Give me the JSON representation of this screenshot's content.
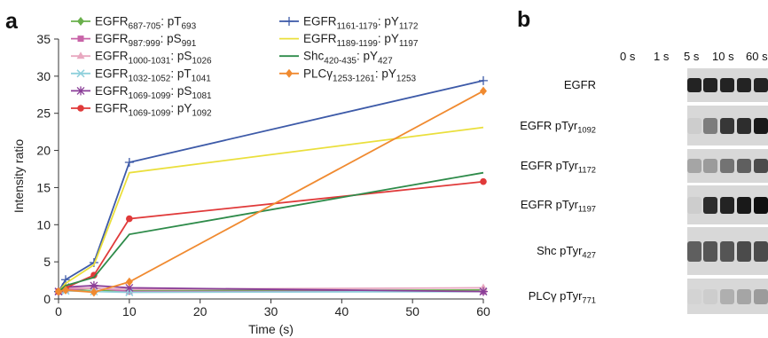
{
  "panel_a_label": "a",
  "panel_b_label": "b",
  "chart_data": {
    "type": "line",
    "xlabel": "Time (s)",
    "ylabel": "Intensity ratio",
    "xlim": [
      0,
      60
    ],
    "ylim": [
      0,
      35
    ],
    "xticks": [
      0,
      10,
      20,
      30,
      40,
      50,
      60
    ],
    "yticks": [
      0,
      5,
      10,
      15,
      20,
      25,
      30,
      35
    ],
    "grid": false,
    "legend_position": "top-left",
    "x": [
      0,
      1,
      5,
      10,
      60
    ],
    "series": [
      {
        "name": "EGFR687-705: pT693",
        "base": "EGFR",
        "sub1": "687-705",
        "mid": ": pT",
        "sub2": "693",
        "color": "#6ab04c",
        "marker": "diamond",
        "values": [
          1.0,
          1.3,
          1.1,
          1.1,
          1.2
        ]
      },
      {
        "name": "EGFR987:999: pS991",
        "base": "EGFR",
        "sub1": "987:999",
        "mid": ": pS",
        "sub2": "991",
        "color": "#c864a8",
        "marker": "square",
        "values": [
          1.0,
          1.2,
          1.5,
          1.0,
          1.0
        ]
      },
      {
        "name": "EGFR1000-1031: pS1026",
        "base": "EGFR",
        "sub1": "1000-1031",
        "mid": ": pS",
        "sub2": "1026",
        "color": "#e8a8c0",
        "marker": "triangle",
        "values": [
          1.0,
          1.5,
          1.4,
          1.3,
          1.5
        ]
      },
      {
        "name": "EGFR1032-1052: pT1041",
        "base": "EGFR",
        "sub1": "1032-1052",
        "mid": ": pT",
        "sub2": "1041",
        "color": "#8fd0dc",
        "marker": "x",
        "values": [
          1.0,
          1.1,
          1.0,
          0.9,
          1.0
        ]
      },
      {
        "name": "EGFR1069-1099: pS1081",
        "base": "EGFR",
        "sub1": "1069-1099",
        "mid": ": pS",
        "sub2": "1081",
        "color": "#8a3e98",
        "marker": "star",
        "values": [
          1.0,
          1.6,
          1.8,
          1.5,
          1.0
        ]
      },
      {
        "name": "EGFR1069-1099: pY1092",
        "base": "EGFR",
        "sub1": "1069-1099",
        "mid": ": pY",
        "sub2": "1092",
        "color": "#e03a3a",
        "marker": "circle",
        "values": [
          1.0,
          1.5,
          3.2,
          10.8,
          15.8
        ]
      },
      {
        "name": "EGFR1161-1179: pY1172",
        "base": "EGFR",
        "sub1": "1161-1179",
        "mid": ": pY",
        "sub2": "1172",
        "color": "#3d5aa8",
        "marker": "plus",
        "values": [
          1.0,
          2.6,
          4.9,
          18.4,
          29.4
        ]
      },
      {
        "name": "EGFR1189-1199: pY1197",
        "base": "EGFR",
        "sub1": "1189-1199",
        "mid": ": pY",
        "sub2": "1197",
        "color": "#eadf3c",
        "marker": "none",
        "values": [
          1.0,
          2.1,
          4.6,
          17.0,
          23.1
        ]
      },
      {
        "name": "Shc420-435: pY427",
        "base": "Shc",
        "sub1": "420-435",
        "mid": ": pY",
        "sub2": "427",
        "color": "#2e8b4a",
        "marker": "none",
        "values": [
          1.0,
          1.8,
          2.9,
          8.7,
          17.0
        ]
      },
      {
        "name": "PLCγ1253-1261: pY1253",
        "base": "PLCγ",
        "sub1": "1253-1261",
        "mid": ": pY",
        "sub2": "1253",
        "color": "#f08a30",
        "marker": "diamond",
        "values": [
          1.0,
          1.2,
          0.9,
          2.3,
          28.0
        ]
      }
    ]
  },
  "blot": {
    "time_points": [
      "0 s",
      "1 s",
      "5 s",
      "10 s",
      "60 s"
    ],
    "rows": [
      {
        "label": "EGFR",
        "sub": "",
        "intensity": [
          0.9,
          0.9,
          0.9,
          0.9,
          0.9
        ]
      },
      {
        "label": "EGFR pTyr",
        "sub": "1092",
        "intensity": [
          0.05,
          0.45,
          0.8,
          0.85,
          0.95
        ]
      },
      {
        "label": "EGFR pTyr",
        "sub": "1172",
        "intensity": [
          0.25,
          0.3,
          0.5,
          0.6,
          0.7
        ]
      },
      {
        "label": "EGFR pTyr",
        "sub": "1197",
        "intensity": [
          0.05,
          0.85,
          0.9,
          0.95,
          1.0
        ]
      },
      {
        "label": "Shc pTyr",
        "sub": "427",
        "intensity": [
          0.6,
          0.65,
          0.65,
          0.7,
          0.7
        ]
      },
      {
        "label": "PLCγ pTyr",
        "sub": "771",
        "intensity": [
          0.02,
          0.05,
          0.2,
          0.25,
          0.3
        ]
      }
    ]
  }
}
